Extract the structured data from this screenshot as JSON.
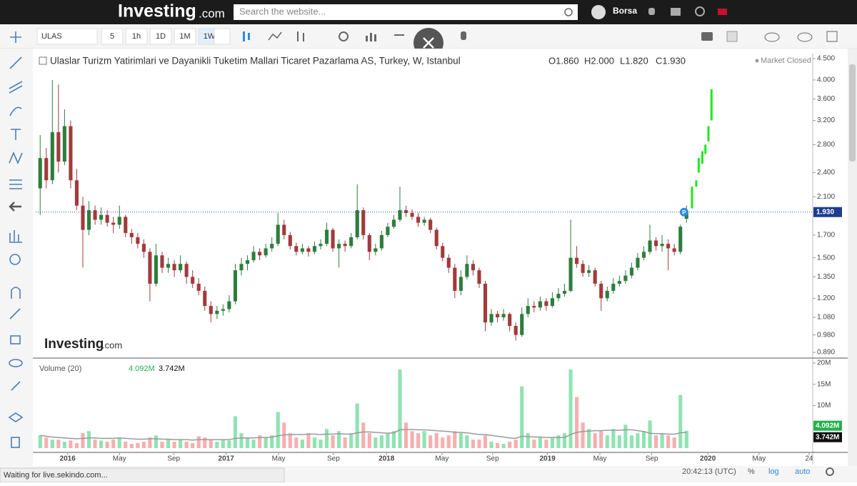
{
  "header": {
    "logo": "Investing",
    "logo_suffix": ".com",
    "search_placeholder": "Search the website...",
    "user": "Borsa"
  },
  "toolbar": {
    "symbol": "ULAS",
    "intervals": [
      "5",
      "1h",
      "1D",
      "1M",
      "1W"
    ],
    "active_interval": "1W"
  },
  "status_bar": {
    "loading": "Waiting for live.sekindo.com...",
    "time": "20:42:13 (UTC)",
    "percent": "%",
    "log": "log",
    "auto": "auto"
  },
  "chart_data": [
    {
      "type": "candlestick",
      "title": "Ulaslar Turizm Yatirimlari ve Dayanikli Tuketim Mallari Ticaret Pazarlama AS, Turkey, W, Istanbul",
      "legend_values": [
        "O1.860",
        "H2.000",
        "L1.820",
        "C1.930"
      ],
      "status": "Market Closed",
      "watermark": "Investing",
      "watermark_suffix": ".com",
      "log_scale": true,
      "grid": false,
      "up_color": "#2e7d3e",
      "down_color": "#a23a3c",
      "ylim": [
        0.866,
        4.626
      ],
      "yticks": [
        {
          "value": 4.5,
          "label": "4.500"
        },
        {
          "value": 4,
          "label": "4.000"
        },
        {
          "value": 3.6,
          "label": "3.600"
        },
        {
          "value": 3.2,
          "label": "3.200"
        },
        {
          "value": 2.8,
          "label": "2.800"
        },
        {
          "value": 2.4,
          "label": "2.400"
        },
        {
          "value": 2.1,
          "label": "2.100"
        },
        {
          "value": 1.7,
          "label": "1.700"
        },
        {
          "value": 1.5,
          "label": "1.500"
        },
        {
          "value": 1.35,
          "label": "1.350"
        },
        {
          "value": 1.2,
          "label": "1.200"
        },
        {
          "value": 1.08,
          "label": "1.080"
        },
        {
          "value": 0.98,
          "label": "0.980"
        },
        {
          "value": 0.89,
          "label": "0.890"
        }
      ],
      "xlim": [
        -0.73,
        126.7
      ],
      "xticks": [
        {
          "value": 4.5,
          "label": "2016"
        },
        {
          "value": 13,
          "label": "May"
        },
        {
          "value": 21.9,
          "label": "Sep"
        },
        {
          "value": 30.5,
          "label": "2017"
        },
        {
          "value": 39.1,
          "label": "May"
        },
        {
          "value": 48.1,
          "label": "Sep"
        },
        {
          "value": 56.8,
          "label": "2018"
        },
        {
          "value": 65.9,
          "label": "May"
        },
        {
          "value": 74.2,
          "label": "Sep"
        },
        {
          "value": 83.2,
          "label": "2019"
        },
        {
          "value": 91.8,
          "label": "May"
        },
        {
          "value": 100.3,
          "label": "Sep"
        },
        {
          "value": 109.5,
          "label": "2020"
        },
        {
          "value": 117.9,
          "label": "May"
        },
        {
          "value": 126.1,
          "label": "24"
        }
      ],
      "last_price": {
        "value": 1.93,
        "label": "1.930"
      },
      "marker": "P",
      "marker_index": 105.6,
      "marker_price": 1.93,
      "ohlc": [
        [
          2.2,
          2.95,
          1.9,
          2.6
        ],
        [
          2.6,
          2.75,
          2.2,
          2.3
        ],
        [
          2.3,
          4.0,
          2.25,
          3.0
        ],
        [
          3.0,
          3.9,
          2.4,
          2.55
        ],
        [
          2.55,
          3.4,
          2.5,
          3.1
        ],
        [
          3.1,
          3.2,
          2.2,
          2.3
        ],
        [
          2.3,
          2.45,
          1.95,
          2.0
        ],
        [
          2.0,
          2.1,
          1.42,
          1.75
        ],
        [
          1.75,
          2.05,
          1.7,
          1.95
        ],
        [
          1.95,
          2.0,
          1.8,
          1.85
        ],
        [
          1.85,
          1.98,
          1.8,
          1.9
        ],
        [
          1.9,
          1.95,
          1.78,
          1.82
        ],
        [
          1.82,
          1.88,
          1.72,
          1.8
        ],
        [
          1.8,
          2.0,
          1.76,
          1.88
        ],
        [
          1.88,
          1.9,
          1.68,
          1.72
        ],
        [
          1.72,
          1.76,
          1.62,
          1.68
        ],
        [
          1.68,
          1.72,
          1.58,
          1.62
        ],
        [
          1.62,
          1.66,
          1.5,
          1.55
        ],
        [
          1.55,
          1.58,
          1.18,
          1.3
        ],
        [
          1.3,
          1.62,
          1.28,
          1.52
        ],
        [
          1.52,
          1.55,
          1.38,
          1.42
        ],
        [
          1.42,
          1.5,
          1.38,
          1.45
        ],
        [
          1.45,
          1.48,
          1.35,
          1.4
        ],
        [
          1.4,
          1.52,
          1.38,
          1.45
        ],
        [
          1.45,
          1.47,
          1.3,
          1.35
        ],
        [
          1.35,
          1.4,
          1.27,
          1.3
        ],
        [
          1.3,
          1.34,
          1.22,
          1.25
        ],
        [
          1.25,
          1.28,
          1.12,
          1.15
        ],
        [
          1.15,
          1.18,
          1.05,
          1.1
        ],
        [
          1.1,
          1.15,
          1.07,
          1.12
        ],
        [
          1.12,
          1.16,
          1.09,
          1.13
        ],
        [
          1.13,
          1.22,
          1.11,
          1.18
        ],
        [
          1.18,
          1.45,
          1.16,
          1.4
        ],
        [
          1.4,
          1.5,
          1.36,
          1.45
        ],
        [
          1.45,
          1.52,
          1.4,
          1.48
        ],
        [
          1.48,
          1.6,
          1.46,
          1.55
        ],
        [
          1.55,
          1.58,
          1.48,
          1.52
        ],
        [
          1.52,
          1.62,
          1.5,
          1.58
        ],
        [
          1.58,
          1.68,
          1.55,
          1.62
        ],
        [
          1.62,
          1.92,
          1.6,
          1.8
        ],
        [
          1.8,
          1.85,
          1.66,
          1.7
        ],
        [
          1.7,
          1.73,
          1.57,
          1.6
        ],
        [
          1.6,
          1.63,
          1.52,
          1.55
        ],
        [
          1.55,
          1.62,
          1.53,
          1.58
        ],
        [
          1.58,
          1.6,
          1.51,
          1.55
        ],
        [
          1.55,
          1.64,
          1.53,
          1.6
        ],
        [
          1.6,
          1.66,
          1.57,
          1.62
        ],
        [
          1.62,
          1.82,
          1.6,
          1.75
        ],
        [
          1.75,
          1.77,
          1.55,
          1.58
        ],
        [
          1.58,
          1.66,
          1.42,
          1.62
        ],
        [
          1.62,
          1.65,
          1.55,
          1.6
        ],
        [
          1.6,
          1.72,
          1.58,
          1.68
        ],
        [
          1.68,
          2.25,
          1.66,
          1.95
        ],
        [
          1.95,
          1.98,
          1.66,
          1.7
        ],
        [
          1.7,
          1.72,
          1.48,
          1.55
        ],
        [
          1.55,
          1.62,
          1.52,
          1.58
        ],
        [
          1.58,
          1.74,
          1.56,
          1.7
        ],
        [
          1.7,
          1.82,
          1.68,
          1.78
        ],
        [
          1.78,
          1.9,
          1.76,
          1.85
        ],
        [
          1.85,
          2.22,
          1.83,
          1.95
        ],
        [
          1.95,
          2.0,
          1.88,
          1.92
        ],
        [
          1.92,
          1.96,
          1.85,
          1.88
        ],
        [
          1.88,
          1.92,
          1.78,
          1.82
        ],
        [
          1.82,
          1.88,
          1.79,
          1.85
        ],
        [
          1.85,
          1.87,
          1.72,
          1.75
        ],
        [
          1.75,
          1.77,
          1.57,
          1.6
        ],
        [
          1.6,
          1.63,
          1.47,
          1.5
        ],
        [
          1.5,
          1.53,
          1.38,
          1.42
        ],
        [
          1.42,
          1.45,
          1.2,
          1.25
        ],
        [
          1.25,
          1.4,
          1.22,
          1.35
        ],
        [
          1.35,
          1.52,
          1.33,
          1.45
        ],
        [
          1.45,
          1.48,
          1.36,
          1.4
        ],
        [
          1.4,
          1.42,
          1.27,
          1.3
        ],
        [
          1.3,
          1.32,
          1.0,
          1.05
        ],
        [
          1.05,
          1.13,
          1.03,
          1.1
        ],
        [
          1.1,
          1.12,
          1.05,
          1.08
        ],
        [
          1.08,
          1.13,
          1.06,
          1.1
        ],
        [
          1.1,
          1.11,
          1.0,
          1.03
        ],
        [
          1.03,
          1.05,
          0.95,
          0.98
        ],
        [
          0.98,
          1.14,
          0.97,
          1.1
        ],
        [
          1.1,
          1.2,
          1.08,
          1.15
        ],
        [
          1.15,
          1.18,
          1.11,
          1.14
        ],
        [
          1.14,
          1.21,
          1.12,
          1.18
        ],
        [
          1.18,
          1.2,
          1.12,
          1.15
        ],
        [
          1.15,
          1.24,
          1.14,
          1.2
        ],
        [
          1.2,
          1.27,
          1.18,
          1.23
        ],
        [
          1.23,
          1.3,
          1.21,
          1.25
        ],
        [
          1.25,
          1.85,
          1.24,
          1.5
        ],
        [
          1.5,
          1.6,
          1.42,
          1.45
        ],
        [
          1.45,
          1.48,
          1.35,
          1.38
        ],
        [
          1.38,
          1.44,
          1.35,
          1.4
        ],
        [
          1.4,
          1.42,
          1.28,
          1.3
        ],
        [
          1.3,
          1.32,
          1.12,
          1.2
        ],
        [
          1.2,
          1.28,
          1.18,
          1.25
        ],
        [
          1.25,
          1.34,
          1.23,
          1.3
        ],
        [
          1.3,
          1.36,
          1.28,
          1.32
        ],
        [
          1.32,
          1.4,
          1.3,
          1.36
        ],
        [
          1.36,
          1.46,
          1.34,
          1.42
        ],
        [
          1.42,
          1.54,
          1.4,
          1.5
        ],
        [
          1.5,
          1.6,
          1.48,
          1.55
        ],
        [
          1.55,
          1.8,
          1.53,
          1.65
        ],
        [
          1.65,
          1.68,
          1.56,
          1.6
        ],
        [
          1.6,
          1.7,
          1.55,
          1.62
        ],
        [
          1.62,
          1.66,
          1.4,
          1.58
        ],
        [
          1.58,
          1.62,
          1.52,
          1.55
        ],
        [
          1.55,
          1.8,
          1.53,
          1.78
        ],
        [
          1.86,
          2.0,
          1.82,
          1.93
        ]
      ],
      "projection": {
        "color": "#1ee81e",
        "x": [
          106.9,
          107.6,
          108.0,
          108.6,
          109.1,
          109.6,
          110.1
        ],
        "low": [
          1.97,
          2.22,
          2.4,
          2.52,
          2.66,
          2.85,
          3.2
        ],
        "high": [
          2.22,
          2.3,
          2.6,
          2.7,
          2.8,
          3.1,
          3.8
        ]
      }
    },
    {
      "type": "bar",
      "title": "Volume (20)",
      "up_color": "#8fe3b2",
      "down_color": "#f6afb0",
      "ma_color": "#9a9a9a",
      "ylim": [
        0,
        20.84
      ],
      "yticks": [
        {
          "value": 20,
          "label": "20M"
        },
        {
          "value": 15,
          "label": "15M"
        },
        {
          "value": 10,
          "label": "10M"
        }
      ],
      "legend_values": [
        {
          "value": 4.092,
          "label": "4.092M",
          "color": "#22b14c"
        },
        {
          "value": 3.742,
          "label": "3.742M",
          "color": "#111111"
        }
      ],
      "values": [
        3.0,
        2.5,
        2.0,
        2.0,
        1.5,
        1.8,
        1.2,
        3.5,
        4.0,
        2.0,
        1.8,
        1.5,
        2.0,
        2.5,
        1.5,
        1.0,
        1.2,
        1.5,
        2.5,
        3.0,
        1.5,
        2.0,
        1.5,
        2.0,
        1.5,
        1.2,
        2.8,
        2.5,
        2.0,
        1.5,
        2.0,
        1.8,
        7.5,
        3.5,
        2.5,
        2.0,
        3.0,
        2.5,
        3.0,
        8.5,
        6.0,
        3.5,
        2.5,
        2.0,
        3.5,
        2.5,
        2.0,
        4.5,
        3.0,
        4.0,
        2.5,
        3.5,
        10.5,
        6.0,
        3.5,
        2.5,
        3.0,
        3.5,
        4.0,
        18.5,
        6.0,
        4.0,
        3.5,
        4.0,
        3.0,
        3.5,
        2.5,
        3.0,
        4.0,
        3.5,
        3.0,
        2.0,
        2.0,
        3.0,
        1.5,
        1.2,
        1.0,
        1.5,
        2.0,
        14.5,
        3.5,
        2.0,
        2.5,
        2.0,
        2.5,
        3.0,
        3.5,
        18.5,
        12.0,
        6.0,
        4.5,
        3.5,
        4.0,
        3.0,
        4.5,
        3.0,
        5.5,
        3.0,
        3.5,
        4.0,
        6.5,
        3.0,
        3.5,
        3.0,
        2.5,
        12.5,
        4.092
      ],
      "ma": [
        3.0,
        2.8,
        2.6,
        2.5,
        2.4,
        2.3,
        2.2,
        2.3,
        2.4,
        2.4,
        2.3,
        2.3,
        2.3,
        2.4,
        2.3,
        2.2,
        2.1,
        2.1,
        2.2,
        2.2,
        2.1,
        2.1,
        2.0,
        2.0,
        2.0,
        1.9,
        2.0,
        2.0,
        2.0,
        2.0,
        2.0,
        2.0,
        2.3,
        2.4,
        2.4,
        2.4,
        2.5,
        2.5,
        2.6,
        2.9,
        3.1,
        3.2,
        3.2,
        3.2,
        3.3,
        3.3,
        3.2,
        3.3,
        3.3,
        3.4,
        3.3,
        3.3,
        3.6,
        3.8,
        3.8,
        3.7,
        3.6,
        3.5,
        3.6,
        4.3,
        4.4,
        4.4,
        4.3,
        4.3,
        4.2,
        4.1,
        4.0,
        3.9,
        3.7,
        3.7,
        3.6,
        3.4,
        3.2,
        3.2,
        3.0,
        2.8,
        2.6,
        2.4,
        2.3,
        2.8,
        2.7,
        2.6,
        2.6,
        2.5,
        2.5,
        2.5,
        2.5,
        3.2,
        3.7,
        3.9,
        4.0,
        4.1,
        4.1,
        4.2,
        4.2,
        4.2,
        4.3,
        4.3,
        4.1,
        3.9,
        3.5,
        3.4,
        3.4,
        3.3,
        3.3,
        3.6,
        3.742
      ]
    }
  ]
}
